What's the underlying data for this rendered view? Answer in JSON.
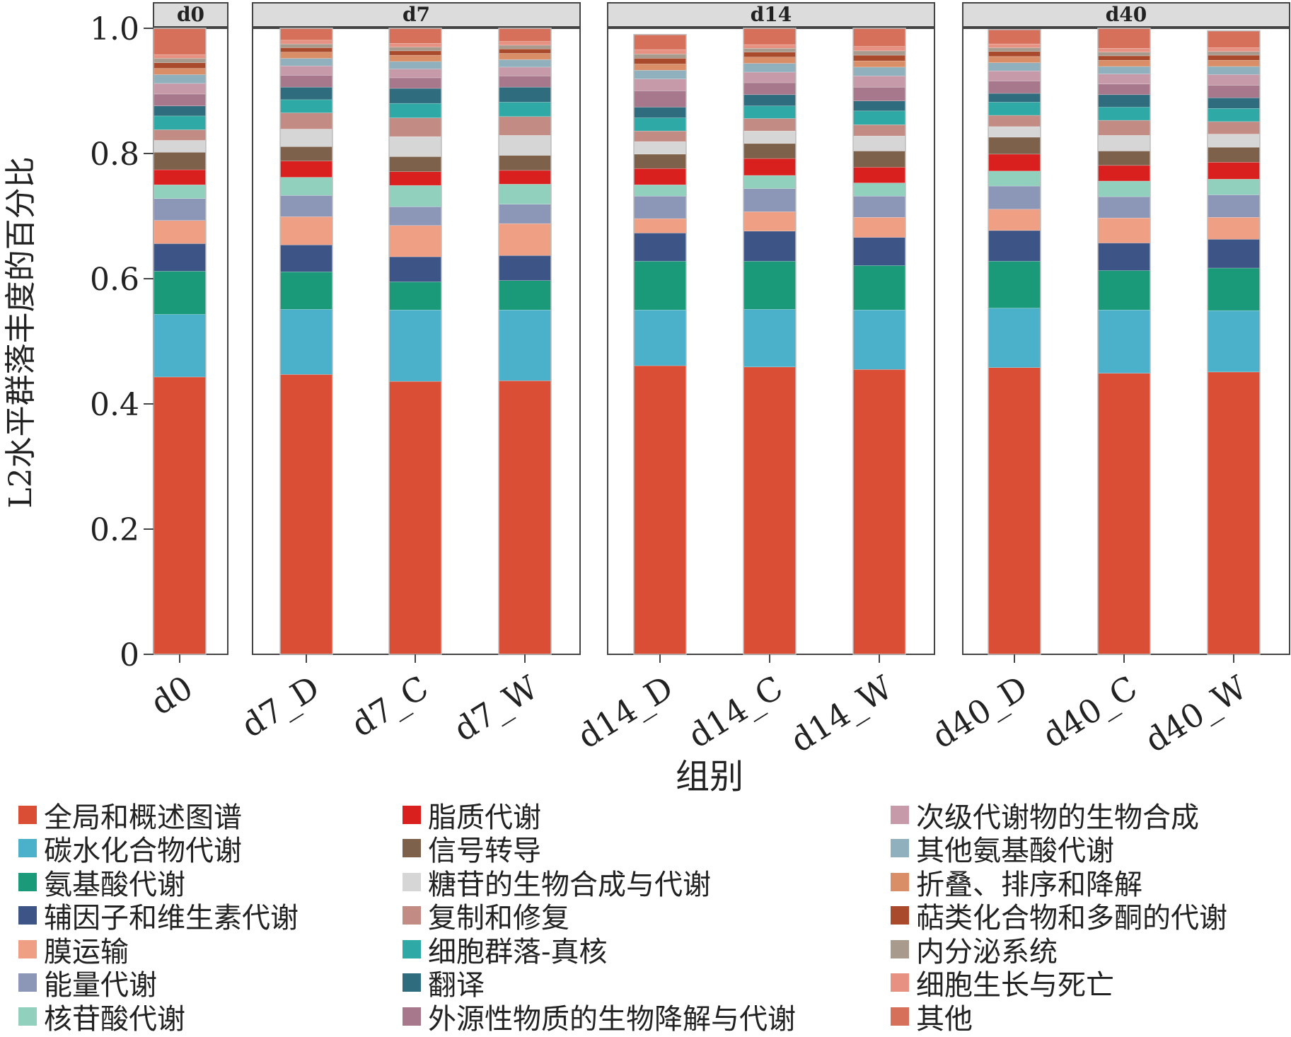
{
  "chart_data": {
    "type": "bar",
    "stacked": true,
    "ylabel": "L2水平群落丰度的百分比",
    "xlabel": "组别",
    "ylim": [
      0,
      1.0
    ],
    "yticks": [
      0,
      0.2,
      0.4,
      0.6,
      0.8,
      1.0
    ],
    "ytick_labels": [
      "0",
      "0.2",
      "0.4",
      "0.6",
      "0.8",
      "1.0"
    ],
    "panels": [
      {
        "label": "d0",
        "categories": [
          "d0"
        ]
      },
      {
        "label": "d7",
        "categories": [
          "d7_D",
          "d7_C",
          "d7_W"
        ]
      },
      {
        "label": "d14",
        "categories": [
          "d14_D",
          "d14_C",
          "d14_W"
        ]
      },
      {
        "label": "d40",
        "categories": [
          "d40_D",
          "d40_C",
          "d40_W"
        ]
      }
    ],
    "categories": [
      "d0",
      "d7_D",
      "d7_C",
      "d7_W",
      "d14_D",
      "d14_C",
      "d14_W",
      "d40_D",
      "d40_C",
      "d40_W"
    ],
    "series": [
      {
        "name": "全局和概述图谱",
        "color": "#D94E34",
        "values": [
          0.443,
          0.447,
          0.436,
          0.437,
          0.461,
          0.459,
          0.455,
          0.458,
          0.449,
          0.451
        ]
      },
      {
        "name": "碳水化合物代谢",
        "color": "#4BB1CB",
        "values": [
          0.1,
          0.104,
          0.114,
          0.113,
          0.089,
          0.092,
          0.095,
          0.095,
          0.101,
          0.098
        ]
      },
      {
        "name": "氨基酸代谢",
        "color": "#1B9A7A",
        "values": [
          0.069,
          0.06,
          0.045,
          0.047,
          0.078,
          0.077,
          0.071,
          0.075,
          0.063,
          0.068
        ]
      },
      {
        "name": "辅因子和维生素代谢",
        "color": "#3D5487",
        "values": [
          0.044,
          0.043,
          0.04,
          0.04,
          0.045,
          0.048,
          0.045,
          0.049,
          0.044,
          0.046
        ]
      },
      {
        "name": "膜运输",
        "color": "#EE9F84",
        "values": [
          0.037,
          0.045,
          0.05,
          0.051,
          0.023,
          0.031,
          0.032,
          0.034,
          0.04,
          0.035
        ]
      },
      {
        "name": "能量代谢",
        "color": "#8C97B8",
        "values": [
          0.035,
          0.034,
          0.03,
          0.031,
          0.036,
          0.037,
          0.034,
          0.037,
          0.034,
          0.036
        ]
      },
      {
        "name": "核苷酸代谢",
        "color": "#92D0BE",
        "values": [
          0.022,
          0.029,
          0.034,
          0.032,
          0.018,
          0.021,
          0.021,
          0.024,
          0.025,
          0.025
        ]
      },
      {
        "name": "脂质代谢",
        "color": "#DA1F1F",
        "values": [
          0.024,
          0.026,
          0.022,
          0.022,
          0.026,
          0.027,
          0.025,
          0.027,
          0.025,
          0.027
        ]
      },
      {
        "name": "信号转导",
        "color": "#7E614B",
        "values": [
          0.028,
          0.023,
          0.024,
          0.024,
          0.023,
          0.024,
          0.026,
          0.027,
          0.023,
          0.024
        ]
      },
      {
        "name": "糖苷的生物合成与代谢",
        "color": "#D6D6D6",
        "values": [
          0.019,
          0.028,
          0.032,
          0.032,
          0.02,
          0.02,
          0.024,
          0.017,
          0.025,
          0.021
        ]
      },
      {
        "name": "复制和修复",
        "color": "#C28C84",
        "values": [
          0.017,
          0.026,
          0.03,
          0.03,
          0.017,
          0.02,
          0.018,
          0.018,
          0.024,
          0.02
        ]
      },
      {
        "name": "细胞群落-真核",
        "color": "#2FA9A5",
        "values": [
          0.022,
          0.021,
          0.023,
          0.023,
          0.021,
          0.02,
          0.022,
          0.021,
          0.021,
          0.021
        ]
      },
      {
        "name": "翻译",
        "color": "#2E6C7E",
        "values": [
          0.016,
          0.02,
          0.024,
          0.024,
          0.017,
          0.018,
          0.016,
          0.014,
          0.02,
          0.017
        ]
      },
      {
        "name": "外源性物质的生物降解与代谢",
        "color": "#A7788C",
        "values": [
          0.019,
          0.019,
          0.017,
          0.018,
          0.026,
          0.019,
          0.022,
          0.02,
          0.017,
          0.02
        ]
      },
      {
        "name": "次级代谢物的生物合成",
        "color": "#C69AA8",
        "values": [
          0.017,
          0.015,
          0.014,
          0.014,
          0.019,
          0.017,
          0.018,
          0.016,
          0.016,
          0.017
        ]
      },
      {
        "name": "其他氨基酸代谢",
        "color": "#8FB0BC",
        "values": [
          0.014,
          0.012,
          0.012,
          0.012,
          0.014,
          0.014,
          0.014,
          0.013,
          0.012,
          0.013
        ]
      },
      {
        "name": "折叠、排序和降解",
        "color": "#D98E67",
        "values": [
          0.01,
          0.01,
          0.01,
          0.01,
          0.01,
          0.01,
          0.01,
          0.01,
          0.01,
          0.01
        ]
      },
      {
        "name": "萜类化合物和多酮的代谢",
        "color": "#A94A2C",
        "values": [
          0.009,
          0.007,
          0.007,
          0.007,
          0.009,
          0.008,
          0.009,
          0.008,
          0.007,
          0.008
        ]
      },
      {
        "name": "内分泌系统",
        "color": "#A99A8E",
        "values": [
          0.007,
          0.006,
          0.006,
          0.006,
          0.007,
          0.006,
          0.007,
          0.006,
          0.006,
          0.006
        ]
      },
      {
        "name": "细胞生长与死亡",
        "color": "#E79182",
        "values": [
          0.006,
          0.006,
          0.006,
          0.006,
          0.007,
          0.006,
          0.007,
          0.006,
          0.006,
          0.006
        ]
      },
      {
        "name": "其他",
        "color": "#D7705A",
        "values": [
          0.042,
          0.019,
          0.024,
          0.021,
          0.024,
          0.026,
          0.029,
          0.023,
          0.032,
          0.027
        ]
      }
    ],
    "legend_position": "bottom",
    "grid": false
  }
}
